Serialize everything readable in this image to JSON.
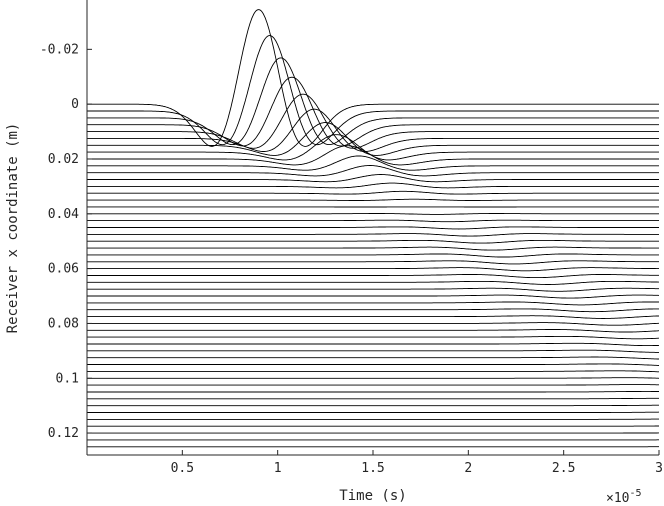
{
  "chart_data": {
    "type": "line",
    "subtype": "wiggle seismogram (one trace per receiver)",
    "xlabel": "Time (s)",
    "ylabel": "Receiver x coordinate (m)",
    "x_exponent_label": "×10",
    "x_exponent_power": "-5",
    "xlim": [
      0,
      3.0
    ],
    "ylim": [
      -0.038,
      0.128
    ],
    "y_reversed": true,
    "grid": false,
    "legend": "none",
    "xticks": [
      0.5,
      1.0,
      1.5,
      2.0,
      2.5,
      3.0
    ],
    "xtick_labels": [
      "0.5",
      "1",
      "1.5",
      "2",
      "2.5",
      "3"
    ],
    "yticks": [
      -0.02,
      0,
      0.02,
      0.04,
      0.06,
      0.08,
      0.1,
      0.12
    ],
    "ytick_labels": [
      "-0.02",
      "0",
      "0.02",
      "0.04",
      "0.06",
      "0.08",
      "0.1",
      "0.12"
    ],
    "receivers": {
      "first_m": 0.0,
      "spacing_m": 0.0025,
      "count": 51
    },
    "wavefront": {
      "source_receiver_m": 0.0,
      "time_at_origin_e5s": 0.9,
      "arrival_time_at_0.09m_e5s": 3.0
    },
    "wavelet": {
      "type": "ricker",
      "half_width_e5s": 0.2
    },
    "amplitude_peak_m": -0.038
  }
}
